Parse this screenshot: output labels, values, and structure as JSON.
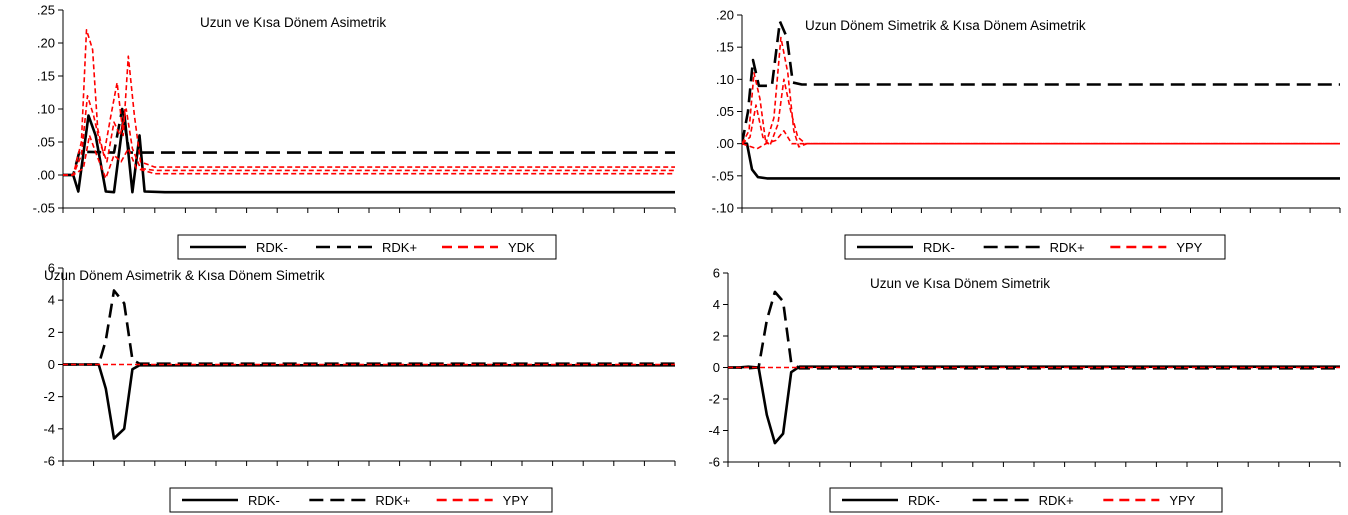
{
  "colors": {
    "black": "#000000",
    "red": "#ff0000",
    "axis": "#000000",
    "background": "#ffffff"
  },
  "chart_data": [
    {
      "type": "line",
      "title": "Uzun ve Kısa Dönem Asimetrik",
      "ylim": [
        -0.05,
        0.25
      ],
      "yticks": [
        -0.05,
        0.0,
        0.05,
        0.1,
        0.15,
        0.2,
        0.25
      ],
      "ytick_labels": [
        "-.05",
        ".00",
        ".05",
        ".10",
        ".15",
        ".20",
        ".25"
      ],
      "x": [
        0,
        1,
        2,
        3,
        4,
        5,
        6,
        7,
        8,
        9,
        10,
        11,
        12,
        13,
        14,
        15,
        16,
        17,
        18,
        19,
        20,
        21,
        22,
        23,
        24,
        25,
        26,
        27,
        28,
        29,
        30,
        31,
        32,
        33,
        34,
        35,
        36,
        37,
        38,
        39,
        40,
        41,
        42,
        43,
        44,
        45,
        46,
        47,
        48,
        49,
        50,
        51,
        52,
        53,
        54,
        55,
        56,
        57,
        58,
        59,
        60
      ],
      "xlim": [
        0,
        60
      ],
      "xtick_count": 20,
      "legend": {
        "placement": "bottom-center",
        "entries": [
          "RDK-",
          "RDK+",
          "YDK"
        ]
      },
      "series": [
        {
          "name": "RDK-",
          "style": "solid",
          "color": "#000000",
          "points": [
            [
              0,
              0
            ],
            [
              1,
              0
            ],
            [
              1.5,
              -0.025
            ],
            [
              2.5,
              0.09
            ],
            [
              3.2,
              0.06
            ],
            [
              4.2,
              -0.025
            ],
            [
              5,
              -0.026
            ],
            [
              6,
              0.095
            ],
            [
              6.8,
              -0.026
            ],
            [
              7.5,
              0.06
            ],
            [
              8,
              -0.025
            ],
            [
              10,
              -0.026
            ],
            [
              60,
              -0.026
            ]
          ]
        },
        {
          "name": "RDK+",
          "style": "dash",
          "color": "#000000",
          "points": [
            [
              0,
              0
            ],
            [
              1,
              0
            ],
            [
              1.6,
              0.035
            ],
            [
              2.6,
              0.035
            ],
            [
              5,
              0.034
            ],
            [
              5.8,
              0.1
            ],
            [
              6.5,
              0.034
            ],
            [
              60,
              0.034
            ]
          ]
        },
        {
          "name": "YDK",
          "style": "dash",
          "color": "#ff0000",
          "points": [
            [
              0,
              0
            ],
            [
              1,
              0
            ],
            [
              1.8,
              0.05
            ],
            [
              2.3,
              0.22
            ],
            [
              2.9,
              0.19
            ],
            [
              3.4,
              0.07
            ],
            [
              4,
              0.03
            ],
            [
              4.7,
              0.09
            ],
            [
              5.3,
              0.14
            ],
            [
              5.9,
              0.06
            ],
            [
              6.4,
              0.18
            ],
            [
              7,
              0.09
            ],
            [
              7.6,
              0.02
            ],
            [
              9,
              0.012
            ],
            [
              60,
              0.012
            ]
          ]
        },
        {
          "name": "",
          "style": "dash",
          "color": "#ff0000",
          "points": [
            [
              0,
              0
            ],
            [
              1,
              0
            ],
            [
              1.8,
              0.03
            ],
            [
              2.4,
              0.12
            ],
            [
              3,
              0.09
            ],
            [
              3.6,
              0.05
            ],
            [
              4.3,
              0.02
            ],
            [
              5,
              0.08
            ],
            [
              5.6,
              0.06
            ],
            [
              6.2,
              0.1
            ],
            [
              6.8,
              0.04
            ],
            [
              7.6,
              0.01
            ],
            [
              9,
              0.007
            ],
            [
              60,
              0.007
            ]
          ]
        },
        {
          "name": "",
          "style": "dash",
          "color": "#ff0000",
          "points": [
            [
              0,
              0
            ],
            [
              1,
              0
            ],
            [
              2,
              0.01
            ],
            [
              2.6,
              0.06
            ],
            [
              3.3,
              0.03
            ],
            [
              4.2,
              -0.005
            ],
            [
              5,
              0.03
            ],
            [
              5.7,
              0.02
            ],
            [
              6.4,
              0.04
            ],
            [
              7.2,
              0.01
            ],
            [
              9,
              0.002
            ],
            [
              60,
              0.002
            ]
          ]
        }
      ]
    },
    {
      "type": "line",
      "title": "Uzun Dönem Simetrik & Kısa Dönem Asimetrik",
      "ylim": [
        -0.1,
        0.2
      ],
      "yticks": [
        -0.1,
        -0.05,
        0.0,
        0.05,
        0.1,
        0.15,
        0.2
      ],
      "ytick_labels": [
        "-.10",
        "-.05",
        ".00",
        ".05",
        ".10",
        ".15",
        ".20"
      ],
      "xlim": [
        0,
        60
      ],
      "xtick_count": 20,
      "legend": {
        "placement": "bottom-center",
        "entries": [
          "RDK-",
          "RDK+",
          "YPY"
        ]
      },
      "series": [
        {
          "name": "RDK-",
          "style": "solid",
          "color": "#000000",
          "points": [
            [
              0,
              0
            ],
            [
              0.5,
              0
            ],
            [
              1,
              -0.04
            ],
            [
              1.6,
              -0.052
            ],
            [
              2.5,
              -0.054
            ],
            [
              60,
              -0.054
            ]
          ]
        },
        {
          "name": "RDK+",
          "style": "dash",
          "color": "#000000",
          "points": [
            [
              0,
              0
            ],
            [
              0.6,
              0.05
            ],
            [
              1.1,
              0.13
            ],
            [
              1.7,
              0.09
            ],
            [
              3,
              0.09
            ],
            [
              3.8,
              0.19
            ],
            [
              4.5,
              0.165
            ],
            [
              5.1,
              0.095
            ],
            [
              6,
              0.092
            ],
            [
              60,
              0.092
            ]
          ]
        },
        {
          "name": "YPY",
          "style": "dash",
          "color": "#ff0000",
          "points": [
            [
              0,
              0
            ],
            [
              0.7,
              0.02
            ],
            [
              1.2,
              0.11
            ],
            [
              1.8,
              0.07
            ],
            [
              2.4,
              0.0
            ],
            [
              3.2,
              0.04
            ],
            [
              3.9,
              0.165
            ],
            [
              4.6,
              0.11
            ],
            [
              5.2,
              0.02
            ],
            [
              5.7,
              -0.005
            ],
            [
              6.5,
              0.0
            ],
            [
              60,
              0.0
            ]
          ]
        },
        {
          "name": "",
          "style": "dash",
          "color": "#ff0000",
          "points": [
            [
              0,
              0
            ],
            [
              0.8,
              0.01
            ],
            [
              1.4,
              0.06
            ],
            [
              2.1,
              0.01
            ],
            [
              2.8,
              -0.003
            ],
            [
              3.6,
              0.03
            ],
            [
              4.2,
              0.1
            ],
            [
              4.9,
              0.05
            ],
            [
              5.6,
              0.01
            ],
            [
              6.4,
              0.0
            ],
            [
              60,
              0.0
            ]
          ]
        },
        {
          "name": "",
          "style": "dash",
          "color": "#ff0000",
          "points": [
            [
              0,
              0
            ],
            [
              1.5,
              -0.008
            ],
            [
              2.4,
              0.0
            ],
            [
              3.4,
              0.005
            ],
            [
              4.2,
              0.02
            ],
            [
              5,
              0.0
            ],
            [
              60,
              0.0
            ]
          ]
        }
      ]
    },
    {
      "type": "line",
      "title": "Uzun Dönem Asimetrik & Kısa Dönem Simetrik",
      "ylim": [
        -6,
        6
      ],
      "yticks": [
        -6,
        -4,
        -2,
        0,
        2,
        4,
        6
      ],
      "ytick_labels": [
        "-6",
        "-4",
        "-2",
        "0",
        "2",
        "4",
        "6"
      ],
      "xlim": [
        0,
        60
      ],
      "xtick_count": 20,
      "legend": {
        "placement": "bottom-center",
        "entries": [
          "RDK-",
          "RDK+",
          "YPY"
        ]
      },
      "series": [
        {
          "name": "RDK-",
          "style": "solid",
          "color": "#000000",
          "points": [
            [
              0,
              0
            ],
            [
              3.5,
              0
            ],
            [
              4.2,
              -1.5
            ],
            [
              5,
              -4.6
            ],
            [
              6,
              -4
            ],
            [
              6.8,
              -0.3
            ],
            [
              7.5,
              -0.05
            ],
            [
              60,
              -0.05
            ]
          ]
        },
        {
          "name": "RDK+",
          "style": "dash",
          "color": "#000000",
          "points": [
            [
              0,
              0
            ],
            [
              3.5,
              0
            ],
            [
              4.2,
              1.5
            ],
            [
              5,
              4.6
            ],
            [
              6,
              3.8
            ],
            [
              6.8,
              0.3
            ],
            [
              7.5,
              0.05
            ],
            [
              60,
              0.05
            ]
          ]
        },
        {
          "name": "YPY",
          "style": "dash",
          "color": "#ff0000",
          "points": [
            [
              0,
              0
            ],
            [
              60,
              0
            ]
          ]
        }
      ]
    },
    {
      "type": "line",
      "title": "Uzun ve Kısa Dönem Simetrik",
      "ylim": [
        -6,
        6
      ],
      "yticks": [
        -6,
        -4,
        -2,
        0,
        2,
        4,
        6
      ],
      "ytick_labels": [
        "-6",
        "-4",
        "-2",
        "0",
        "2",
        "4",
        "6"
      ],
      "xlim": [
        0,
        60
      ],
      "xtick_count": 20,
      "legend": {
        "placement": "bottom-center",
        "entries": [
          "RDK-",
          "RDK+",
          "YPY"
        ]
      },
      "series": [
        {
          "name": "RDK-",
          "style": "solid",
          "color": "#000000",
          "points": [
            [
              0,
              0
            ],
            [
              1,
              0
            ],
            [
              2,
              0.05
            ],
            [
              3,
              0
            ],
            [
              3.8,
              -3
            ],
            [
              4.6,
              -4.8
            ],
            [
              5.4,
              -4.2
            ],
            [
              6.2,
              -0.3
            ],
            [
              7,
              0.05
            ],
            [
              60,
              0.05
            ]
          ]
        },
        {
          "name": "RDK+",
          "style": "dash",
          "color": "#000000",
          "points": [
            [
              0,
              0
            ],
            [
              1,
              0
            ],
            [
              2,
              -0.05
            ],
            [
              3,
              0
            ],
            [
              3.8,
              3
            ],
            [
              4.6,
              4.8
            ],
            [
              5.4,
              4.2
            ],
            [
              6.2,
              0.3
            ],
            [
              7,
              -0.05
            ],
            [
              60,
              -0.05
            ]
          ]
        },
        {
          "name": "YPY",
          "style": "dash",
          "color": "#ff0000",
          "points": [
            [
              0,
              0
            ],
            [
              60,
              0
            ]
          ]
        }
      ]
    }
  ]
}
